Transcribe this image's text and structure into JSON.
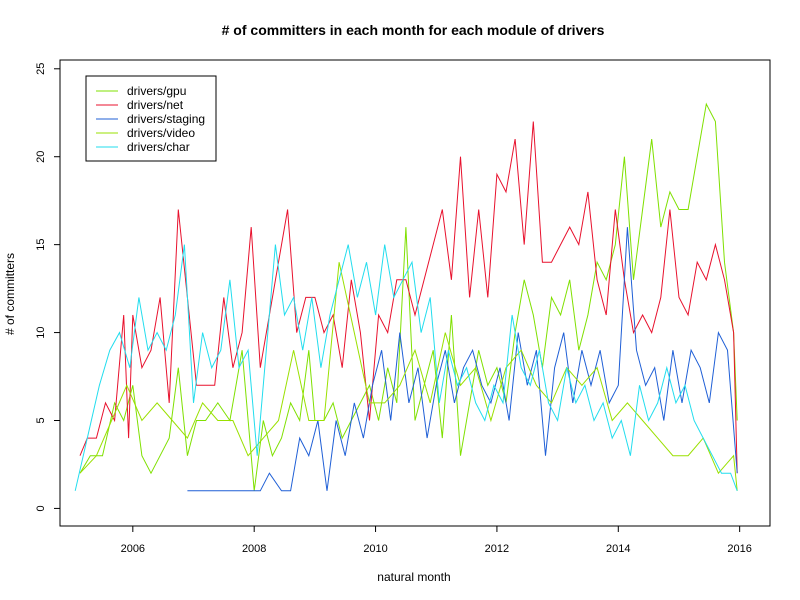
{
  "chart_data": {
    "type": "line",
    "title": "# of committers in each month for each module of drivers",
    "xlabel": "natural month",
    "ylabel": "# of committers",
    "xlim": [
      2004.8,
      2016.5
    ],
    "ylim": [
      -1,
      25.5
    ],
    "xticks": [
      2006,
      2008,
      2010,
      2012,
      2014,
      2016
    ],
    "xtick_labels": [
      "2006",
      "2008",
      "2010",
      "2012",
      "2014",
      "2016"
    ],
    "yticks": [
      0,
      5,
      10,
      15,
      20,
      25
    ],
    "ytick_labels": [
      "0",
      "5",
      "10",
      "15",
      "20",
      "25"
    ],
    "grid": false,
    "legend_position": "top-left",
    "series": [
      {
        "name": "drivers/gpu",
        "color": "#7FE000",
        "x": [
          2005.13,
          2005.3,
          2005.5,
          2005.7,
          2005.85,
          2006.0,
          2006.15,
          2006.3,
          2006.45,
          2006.6,
          2006.75,
          2006.9,
          2007.05,
          2007.2,
          2007.4,
          2007.6,
          2007.8,
          2008.0,
          2008.15,
          2008.3,
          2008.45,
          2008.6,
          2008.75,
          2008.9,
          2009.0,
          2009.15,
          2009.3,
          2009.45,
          2009.6,
          2009.75,
          2009.9,
          2010.05,
          2010.2,
          2010.35,
          2010.5,
          2010.65,
          2010.8,
          2010.95,
          2011.1,
          2011.25,
          2011.4,
          2011.55,
          2011.7,
          2011.85,
          2012.0,
          2012.15,
          2012.3,
          2012.45,
          2012.6,
          2012.75,
          2012.9,
          2013.05,
          2013.2,
          2013.35,
          2013.5,
          2013.65,
          2013.8,
          2013.95,
          2014.1,
          2014.25,
          2014.4,
          2014.55,
          2014.7,
          2014.85,
          2015.0,
          2015.15,
          2015.3,
          2015.45,
          2015.6,
          2015.75,
          2015.9,
          2015.96
        ],
        "values": [
          2,
          3,
          3,
          6,
          5,
          7,
          3,
          2,
          3,
          4,
          8,
          3,
          5,
          5,
          6,
          5,
          9,
          1,
          5,
          3,
          4,
          6,
          5,
          9,
          5,
          5,
          6,
          4,
          5,
          6,
          7,
          5,
          8,
          6,
          16,
          5,
          7,
          9,
          4,
          11,
          3,
          6,
          9,
          7,
          8,
          6,
          10,
          13,
          11,
          8,
          12,
          11,
          13,
          9,
          11,
          14,
          13,
          15,
          20,
          13,
          17,
          21,
          16,
          18,
          17,
          17,
          20,
          23,
          22,
          14,
          10,
          5
        ]
      },
      {
        "name": "drivers/net",
        "color": "#E8112D",
        "x": [
          2005.13,
          2005.25,
          2005.4,
          2005.55,
          2005.7,
          2005.85,
          2005.93,
          2006.0,
          2006.15,
          2006.3,
          2006.45,
          2006.6,
          2006.75,
          2006.9,
          2007.05,
          2007.2,
          2007.35,
          2007.5,
          2007.65,
          2007.8,
          2007.95,
          2008.1,
          2008.25,
          2008.4,
          2008.55,
          2008.7,
          2008.85,
          2009.0,
          2009.15,
          2009.3,
          2009.45,
          2009.6,
          2009.75,
          2009.9,
          2010.05,
          2010.2,
          2010.35,
          2010.5,
          2010.65,
          2010.8,
          2010.95,
          2011.1,
          2011.25,
          2011.4,
          2011.55,
          2011.7,
          2011.85,
          2012.0,
          2012.15,
          2012.3,
          2012.45,
          2012.6,
          2012.75,
          2012.9,
          2013.05,
          2013.2,
          2013.35,
          2013.5,
          2013.65,
          2013.8,
          2013.95,
          2014.1,
          2014.25,
          2014.4,
          2014.55,
          2014.7,
          2014.85,
          2015.0,
          2015.15,
          2015.3,
          2015.45,
          2015.6,
          2015.75,
          2015.9,
          2015.96
        ],
        "values": [
          3,
          4,
          4,
          6,
          5,
          11,
          4,
          11,
          8,
          9,
          12,
          6,
          17,
          12,
          7,
          7,
          7,
          12,
          8,
          10,
          16,
          8,
          11,
          14,
          17,
          10,
          12,
          12,
          10,
          11,
          8,
          13,
          10,
          5,
          11,
          10,
          13,
          13,
          11,
          13,
          15,
          17,
          13,
          20,
          12,
          17,
          12,
          19,
          18,
          21,
          15,
          22,
          14,
          14,
          15,
          16,
          15,
          18,
          13,
          11,
          17,
          13,
          10,
          11,
          10,
          12,
          17,
          12,
          11,
          14,
          13,
          15,
          13,
          10,
          2
        ]
      },
      {
        "name": "drivers/staging",
        "color": "#1F5FD6",
        "x": [
          2006.9,
          2007.2,
          2007.5,
          2007.8,
          2008.1,
          2008.25,
          2008.45,
          2008.6,
          2008.75,
          2008.9,
          2009.05,
          2009.2,
          2009.35,
          2009.5,
          2009.65,
          2009.8,
          2009.95,
          2010.1,
          2010.25,
          2010.4,
          2010.55,
          2010.7,
          2010.85,
          2011.0,
          2011.15,
          2011.3,
          2011.45,
          2011.6,
          2011.75,
          2011.9,
          2012.05,
          2012.2,
          2012.35,
          2012.5,
          2012.65,
          2012.8,
          2012.95,
          2013.1,
          2013.25,
          2013.4,
          2013.55,
          2013.7,
          2013.85,
          2014.0,
          2014.15,
          2014.3,
          2014.45,
          2014.6,
          2014.75,
          2014.9,
          2015.05,
          2015.2,
          2015.35,
          2015.5,
          2015.65,
          2015.8,
          2015.96
        ],
        "values": [
          1,
          1,
          1,
          1,
          1,
          2,
          1,
          1,
          4,
          3,
          5,
          1,
          5,
          3,
          6,
          4,
          7,
          9,
          5,
          10,
          6,
          8,
          4,
          7,
          9,
          6,
          8,
          9,
          7,
          6,
          8,
          5,
          10,
          7,
          9,
          3,
          8,
          10,
          6,
          9,
          7,
          9,
          6,
          7,
          16,
          9,
          7,
          8,
          5,
          9,
          6,
          9,
          8,
          6,
          10,
          9,
          2
        ]
      },
      {
        "name": "drivers/video",
        "color": "#9AE000",
        "x": [
          2005.13,
          2005.4,
          2005.65,
          2005.9,
          2006.15,
          2006.4,
          2006.65,
          2006.9,
          2007.15,
          2007.4,
          2007.65,
          2007.9,
          2008.15,
          2008.4,
          2008.65,
          2008.9,
          2009.15,
          2009.4,
          2009.65,
          2009.9,
          2010.15,
          2010.4,
          2010.65,
          2010.9,
          2011.15,
          2011.4,
          2011.65,
          2011.9,
          2012.15,
          2012.4,
          2012.65,
          2012.9,
          2013.15,
          2013.4,
          2013.65,
          2013.9,
          2014.15,
          2014.4,
          2014.65,
          2014.9,
          2015.15,
          2015.4,
          2015.65,
          2015.9,
          2015.96
        ],
        "values": [
          2,
          3,
          5,
          7,
          5,
          6,
          5,
          4,
          6,
          5,
          5,
          3,
          4,
          5,
          9,
          5,
          5,
          14,
          10,
          6,
          6,
          7,
          9,
          6,
          10,
          7,
          8,
          5,
          8,
          9,
          7,
          6,
          8,
          7,
          8,
          5,
          6,
          5,
          4,
          3,
          3,
          4,
          2,
          3,
          1
        ]
      },
      {
        "name": "drivers/char",
        "color": "#22DDEE",
        "x": [
          2005.05,
          2005.25,
          2005.45,
          2005.62,
          2005.78,
          2005.95,
          2006.1,
          2006.25,
          2006.4,
          2006.55,
          2006.7,
          2006.85,
          2007.0,
          2007.15,
          2007.3,
          2007.45,
          2007.6,
          2007.75,
          2007.9,
          2008.05,
          2008.2,
          2008.35,
          2008.5,
          2008.65,
          2008.8,
          2008.95,
          2009.1,
          2009.25,
          2009.4,
          2009.55,
          2009.7,
          2009.85,
          2010.0,
          2010.15,
          2010.3,
          2010.45,
          2010.6,
          2010.75,
          2010.9,
          2011.05,
          2011.2,
          2011.35,
          2011.5,
          2011.65,
          2011.8,
          2011.95,
          2012.1,
          2012.25,
          2012.4,
          2012.55,
          2012.7,
          2012.85,
          2013.0,
          2013.15,
          2013.3,
          2013.45,
          2013.6,
          2013.75,
          2013.9,
          2014.05,
          2014.2,
          2014.35,
          2014.5,
          2014.65,
          2014.8,
          2014.95,
          2015.1,
          2015.25,
          2015.4,
          2015.55,
          2015.7,
          2015.85,
          2015.96
        ],
        "values": [
          1,
          4,
          7,
          9,
          10,
          8,
          12,
          9,
          10,
          9,
          11,
          15,
          6,
          10,
          8,
          9,
          13,
          8,
          9,
          3,
          9,
          15,
          11,
          12,
          9,
          12,
          8,
          11,
          13,
          15,
          12,
          14,
          11,
          15,
          12,
          13,
          14,
          10,
          12,
          6,
          9,
          7,
          8,
          6,
          5,
          7,
          6,
          11,
          8,
          7,
          9,
          6,
          5,
          8,
          6,
          7,
          5,
          6,
          4,
          5,
          3,
          7,
          5,
          6,
          8,
          6,
          7,
          5,
          4,
          3,
          2,
          2,
          1
        ]
      }
    ]
  }
}
